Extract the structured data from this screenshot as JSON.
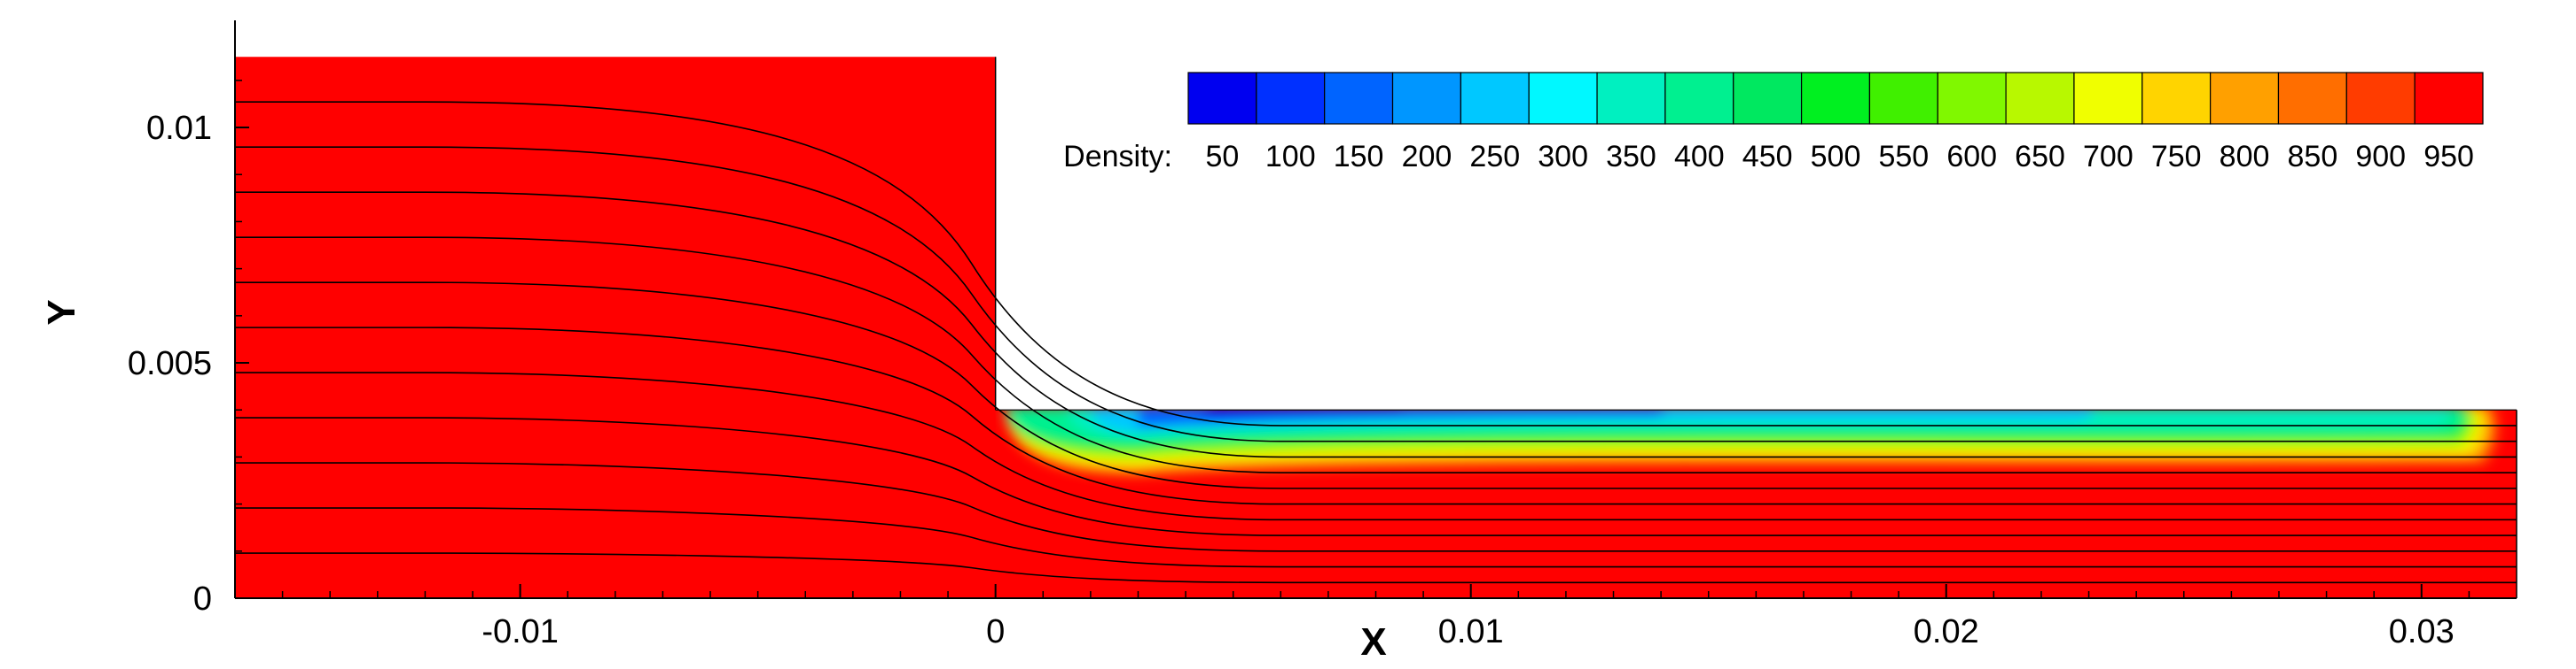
{
  "chart_data": {
    "type": "heatmap",
    "title": "",
    "xlabel": "X",
    "ylabel": "Y",
    "xlim": [
      -0.016,
      0.032
    ],
    "ylim": [
      0,
      0.0122
    ],
    "x_ticks": [
      {
        "value": -0.01,
        "label": "-0.01"
      },
      {
        "value": 0,
        "label": "0"
      },
      {
        "value": 0.01,
        "label": "0.01"
      },
      {
        "value": 0.02,
        "label": "0.02"
      },
      {
        "value": 0.03,
        "label": "0.03"
      }
    ],
    "y_ticks": [
      {
        "value": 0,
        "label": "0"
      },
      {
        "value": 0.005,
        "label": "0.005"
      },
      {
        "value": 0.01,
        "label": "0.01"
      }
    ],
    "geometry": {
      "inlet_height": 0.0115,
      "channel_height": 0.004,
      "step_x": 0,
      "x_start": -0.016,
      "x_end": 0.032
    },
    "legend": {
      "title": "Density:",
      "labels": [
        "50",
        "100",
        "150",
        "200",
        "250",
        "300",
        "350",
        "400",
        "450",
        "500",
        "550",
        "600",
        "650",
        "700",
        "750",
        "800",
        "850",
        "900",
        "950"
      ],
      "colors": [
        "#0000f0",
        "#0030ff",
        "#0064ff",
        "#0096ff",
        "#00c8ff",
        "#00f8ff",
        "#00f0c0",
        "#00f090",
        "#00e860",
        "#00f020",
        "#40f000",
        "#80f800",
        "#b8f800",
        "#f0ff00",
        "#ffd400",
        "#ffa000",
        "#ff6e00",
        "#ff3c00",
        "#ff0000"
      ],
      "placement": "top-right"
    },
    "field": {
      "variable": "Density",
      "background_value": 1000,
      "low_density_region": "thin layer at upper wall of channel, x from 0 to about 0.031",
      "min_value": 50
    },
    "streamline_count": 11
  }
}
